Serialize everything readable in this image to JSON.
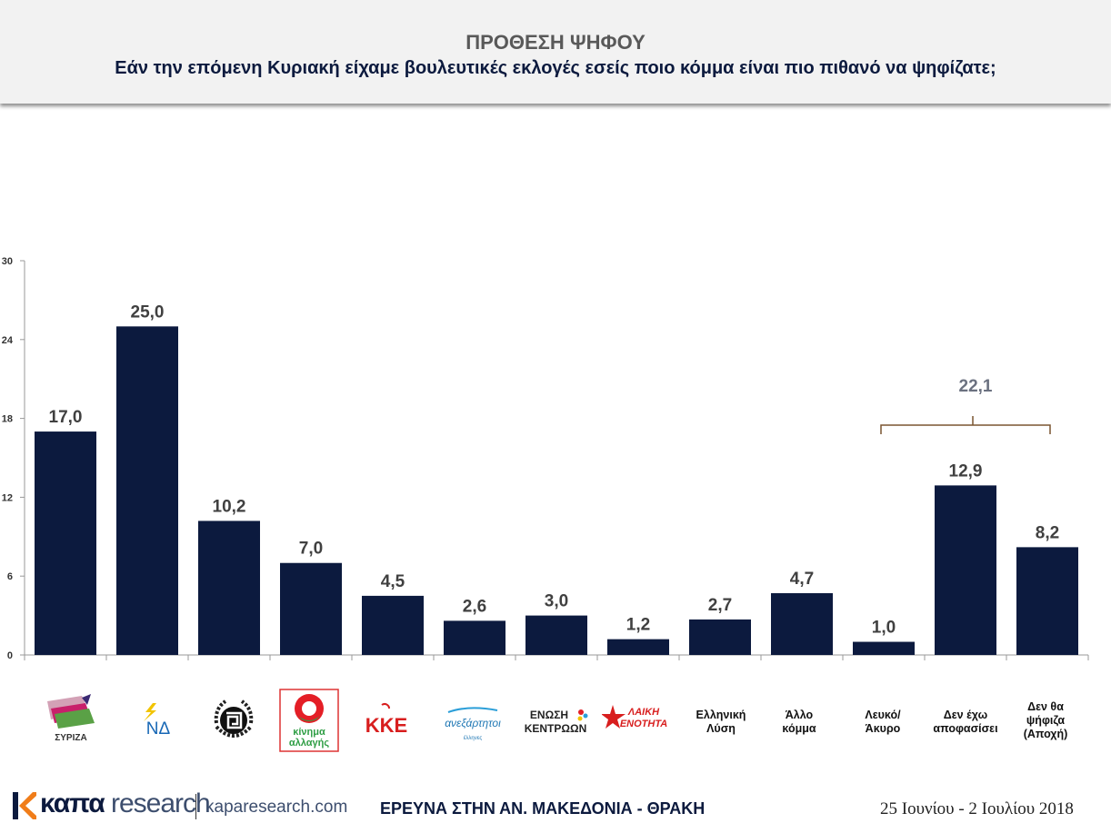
{
  "header": {
    "title": "ΠΡΟΘΕΣΗ ΨΗΦΟΥ",
    "subtitle": "Εάν την επόμενη Κυριακή είχαμε βουλευτικές εκλογές εσείς ποιο κόμμα είναι πιο πιθανό να ψηφίζατε;"
  },
  "chart_data": {
    "type": "bar",
    "categories": [
      "ΣΥΡΙΖΑ",
      "ΝΔ",
      "Χρυσή Αυγή",
      "κίνημα αλλαγής",
      "ΚΚΕ",
      "ανεξάρτητοι έλληνες",
      "ΕΝΩΣΗ ΚΕΝΤΡΩΩΝ",
      "ΛΑΙΚΗ ΕΝΟΤΗΤΑ",
      "Ελληνική Λύση",
      "Άλλο κόμμα",
      "Λευκό/ Άκυρο",
      "Δεν έχω αποφασίσει",
      "Δεν θα ψήφιζα (Αποχή)"
    ],
    "values": [
      17.0,
      25.0,
      10.2,
      7.0,
      4.5,
      2.6,
      3.0,
      1.2,
      2.7,
      4.7,
      1.0,
      12.9,
      8.2
    ],
    "value_labels": [
      "17,0",
      "25,0",
      "10,2",
      "7,0",
      "4,5",
      "2,6",
      "3,0",
      "1,2",
      "2,7",
      "4,7",
      "1,0",
      "12,9",
      "8,2"
    ],
    "ylim": [
      0,
      30
    ],
    "yticks": [
      0,
      6,
      12,
      18,
      24,
      30
    ],
    "bar_color": "#0c1a3e",
    "bracket": {
      "from_index": 10,
      "to_index": 12,
      "value": 22.1,
      "label": "22,1",
      "color": "#7a5530"
    }
  },
  "category_logos": [
    {
      "index": 0,
      "icon": "syriza-logo",
      "text": "ΣΥΡΙΖΑ"
    },
    {
      "index": 1,
      "icon": "nd-logo",
      "text": "ΝΔ"
    },
    {
      "index": 2,
      "icon": "golden-dawn-logo"
    },
    {
      "index": 3,
      "icon": "kinal-logo",
      "line1": "κίνημα",
      "line2": "αλλαγής"
    },
    {
      "index": 4,
      "icon": "kke-logo",
      "text": "ΚΚΕ"
    },
    {
      "index": 5,
      "icon": "anel-logo",
      "line1": "ανεξάρτητοι",
      "line2": "έλληνες"
    },
    {
      "index": 6,
      "icon": "enosi-kentroon-logo",
      "line1": "ΕΝΩΣΗ",
      "line2": "ΚΕΝΤΡΩΩΝ"
    },
    {
      "index": 7,
      "icon": "laiki-enotita-logo",
      "line1": "ΛΑΙΚΗ",
      "line2": "ΕΝΟΤΗΤΑ"
    }
  ],
  "category_texts": [
    {
      "index": 8,
      "lines": [
        "Ελληνική",
        "Λύση"
      ]
    },
    {
      "index": 9,
      "lines": [
        "Άλλο",
        "κόμμα"
      ]
    },
    {
      "index": 10,
      "lines": [
        "Λευκό/",
        "Άκυρο"
      ]
    },
    {
      "index": 11,
      "lines": [
        "Δεν έχω",
        "αποφασίσει"
      ]
    },
    {
      "index": 12,
      "lines": [
        "Δεν θα",
        "ψήφιζα",
        "(Αποχή)"
      ]
    }
  ],
  "footer": {
    "brand_part1": "καπα",
    "brand_part2": "research",
    "url": "kaparesearch.com",
    "center": "ΕΡΕΥΝΑ ΣΤΗΝ ΑΝ. ΜΑΚΕΔΟΝΙΑ - ΘΡΑΚΗ",
    "date": "25 Ιουνίου - 2 Ιουλίου 2018"
  }
}
